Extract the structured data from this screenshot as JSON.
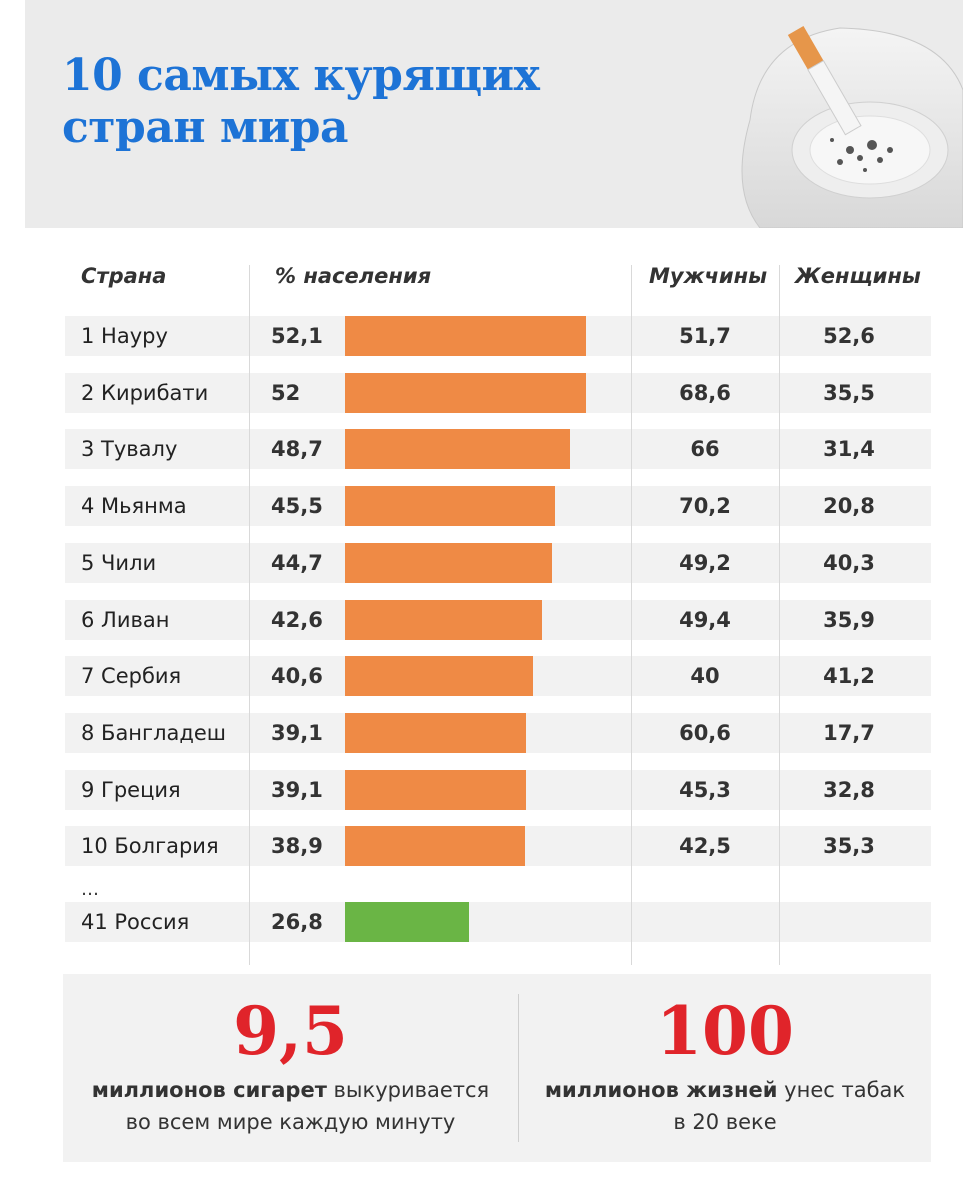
{
  "title_line1": "10 самых курящих",
  "title_line2": "стран мира",
  "chart_data": {
    "type": "bar",
    "columns": {
      "country": "Страна",
      "percent": "% населения",
      "men": "Мужчины",
      "women": "Женщины"
    },
    "rows": [
      {
        "country": "1 Науру",
        "percent": "52,1",
        "value": 52.1,
        "men": "51,7",
        "women": "52,6",
        "color": "#ef8a45"
      },
      {
        "country": "2 Кирибати",
        "percent": "52",
        "value": 52,
        "men": "68,6",
        "women": "35,5",
        "color": "#ef8a45"
      },
      {
        "country": "3 Тувалу",
        "percent": "48,7",
        "value": 48.7,
        "men": "66",
        "women": "31,4",
        "color": "#ef8a45"
      },
      {
        "country": "4 Мьянма",
        "percent": "45,5",
        "value": 45.5,
        "men": "70,2",
        "women": "20,8",
        "color": "#ef8a45"
      },
      {
        "country": "5 Чили",
        "percent": "44,7",
        "value": 44.7,
        "men": "49,2",
        "women": "40,3",
        "color": "#ef8a45"
      },
      {
        "country": "6 Ливан",
        "percent": "42,6",
        "value": 42.6,
        "men": "49,4",
        "women": "35,9",
        "color": "#ef8a45"
      },
      {
        "country": "7 Сербия",
        "percent": "40,6",
        "value": 40.6,
        "men": "40",
        "women": "41,2",
        "color": "#ef8a45"
      },
      {
        "country": "8 Бангладеш",
        "percent": "39,1",
        "value": 39.1,
        "men": "60,6",
        "women": "17,7",
        "color": "#ef8a45"
      },
      {
        "country": "9 Греция",
        "percent": "39,1",
        "value": 39.1,
        "men": "45,3",
        "women": "32,8",
        "color": "#ef8a45"
      },
      {
        "country": "10 Болгария",
        "percent": "38,9",
        "value": 38.9,
        "men": "42,5",
        "women": "35,3",
        "color": "#ef8a45"
      }
    ],
    "ellipsis": "…",
    "extra_row": {
      "country": "41 Россия",
      "percent": "26,8",
      "value": 26.8,
      "men": "",
      "women": "",
      "color": "#6ab545"
    }
  },
  "stats": [
    {
      "big": "9,5",
      "bold": "миллионов сигарет",
      "rest": " выкуривается",
      "line2": "во всем мире каждую минуту"
    },
    {
      "big": "100",
      "bold": "миллионов жизней",
      "rest": " унес табак",
      "line2": "в 20 веке"
    }
  ]
}
